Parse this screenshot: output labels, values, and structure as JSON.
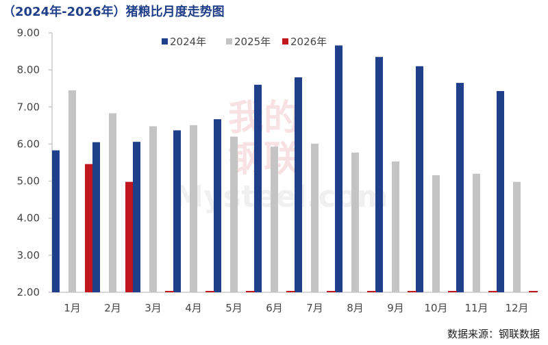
{
  "title": "（2024年-2026年）猪粮比月度走势图",
  "source": "数据来源：钢联数据",
  "watermark": {
    "lines": [
      "我的",
      "钢联"
    ],
    "latin": "Mysteel.com"
  },
  "colors": {
    "2024": "#1f3f8a",
    "2025": "#c4c4c4",
    "2026": "#c0161d",
    "axis": "#c8c8c8"
  },
  "chart_data": {
    "type": "bar",
    "categories": [
      "1月",
      "2月",
      "3月",
      "4月",
      "5月",
      "6月",
      "7月",
      "8月",
      "9月",
      "10月",
      "11月",
      "12月"
    ],
    "series": [
      {
        "name": "2024年",
        "values": [
          5.83,
          6.05,
          6.06,
          6.37,
          6.67,
          7.6,
          7.8,
          8.66,
          8.35,
          8.1,
          7.65,
          7.43
        ]
      },
      {
        "name": "2025年",
        "values": [
          7.45,
          6.83,
          6.48,
          6.51,
          6.2,
          5.93,
          6.01,
          5.77,
          5.53,
          5.16,
          5.2,
          4.98
        ]
      },
      {
        "name": "2026年",
        "values": [
          5.46,
          4.98,
          null,
          null,
          null,
          null,
          null,
          null,
          null,
          null,
          null,
          null
        ]
      }
    ],
    "ylim": [
      2.0,
      9.0
    ],
    "yticks": [
      "2.00",
      "3.00",
      "4.00",
      "5.00",
      "6.00",
      "7.00",
      "8.00",
      "9.00"
    ],
    "legend_position": "top",
    "grid": false
  }
}
